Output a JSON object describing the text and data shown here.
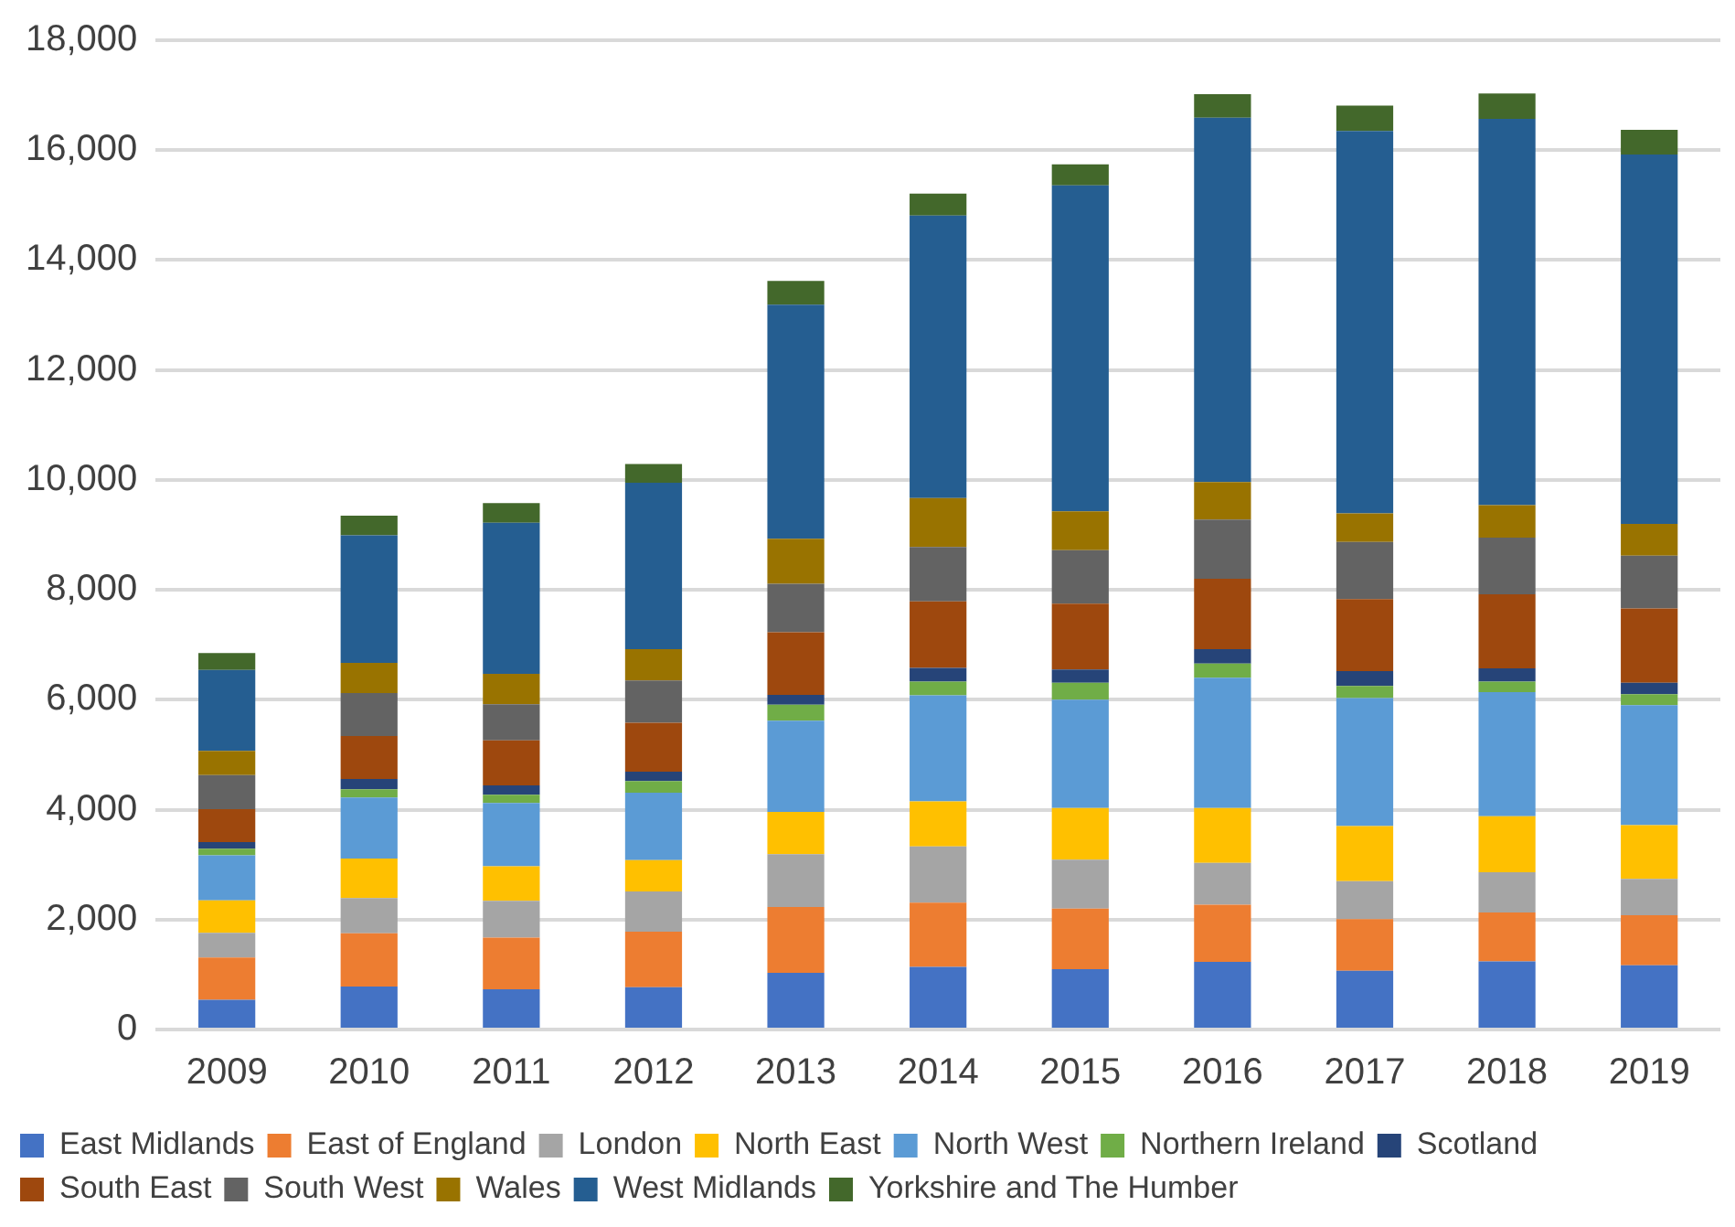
{
  "chart_data": {
    "type": "bar",
    "stacked": true,
    "categories": [
      "2009",
      "2010",
      "2011",
      "2012",
      "2013",
      "2014",
      "2015",
      "2016",
      "2017",
      "2018",
      "2019"
    ],
    "series": [
      {
        "name": "East Midlands",
        "color": "#4472c4",
        "values": [
          540,
          780,
          730,
          770,
          1030,
          1140,
          1100,
          1230,
          1070,
          1240,
          1170
        ]
      },
      {
        "name": "East of England",
        "color": "#ed7d31",
        "values": [
          770,
          970,
          940,
          1010,
          1200,
          1170,
          1100,
          1040,
          940,
          890,
          910
        ]
      },
      {
        "name": "London",
        "color": "#a5a5a5",
        "values": [
          450,
          640,
          670,
          730,
          960,
          1020,
          890,
          760,
          690,
          730,
          660
        ]
      },
      {
        "name": "North East",
        "color": "#ffc000",
        "values": [
          590,
          720,
          630,
          570,
          770,
          820,
          940,
          1000,
          1000,
          1020,
          980
        ]
      },
      {
        "name": "North West",
        "color": "#5b9bd5",
        "values": [
          820,
          1110,
          1150,
          1230,
          1660,
          1930,
          1970,
          2370,
          2330,
          2260,
          2180
        ]
      },
      {
        "name": "Northern Ireland",
        "color": "#70ad47",
        "values": [
          120,
          150,
          150,
          210,
          290,
          250,
          310,
          260,
          220,
          190,
          200
        ]
      },
      {
        "name": "Scotland",
        "color": "#264478",
        "values": [
          120,
          190,
          170,
          170,
          180,
          250,
          240,
          260,
          270,
          240,
          210
        ]
      },
      {
        "name": "South East",
        "color": "#9e480e",
        "values": [
          600,
          780,
          820,
          890,
          1140,
          1210,
          1200,
          1280,
          1310,
          1350,
          1350
        ]
      },
      {
        "name": "South West",
        "color": "#636363",
        "values": [
          620,
          780,
          660,
          770,
          880,
          990,
          970,
          1080,
          1040,
          1030,
          960
        ]
      },
      {
        "name": "Wales",
        "color": "#997300",
        "values": [
          440,
          550,
          550,
          570,
          820,
          890,
          710,
          680,
          520,
          590,
          580
        ]
      },
      {
        "name": "West Midlands",
        "color": "#255e91",
        "values": [
          1470,
          2320,
          2750,
          3030,
          4260,
          5140,
          5930,
          6630,
          6960,
          7030,
          6720
        ]
      },
      {
        "name": "Yorkshire and The Humber",
        "color": "#43682b",
        "values": [
          310,
          360,
          360,
          340,
          430,
          400,
          380,
          430,
          460,
          460,
          450
        ]
      }
    ],
    "ylim": [
      0,
      18000
    ],
    "yticks": [
      0,
      {
        "value": 2000,
        "label": "2,000"
      },
      {
        "value": 4000,
        "label": "4,000"
      },
      {
        "value": 6000,
        "label": "6,000"
      },
      {
        "value": 8000,
        "label": "8,000"
      },
      {
        "value": 10000,
        "label": "10,000"
      },
      {
        "value": 12000,
        "label": "12,000"
      },
      {
        "value": 14000,
        "label": "14,000"
      },
      {
        "value": 16000,
        "label": "16,000"
      },
      {
        "value": 18000,
        "label": "18,000"
      }
    ],
    "grid": "y",
    "legend": "bottom"
  }
}
